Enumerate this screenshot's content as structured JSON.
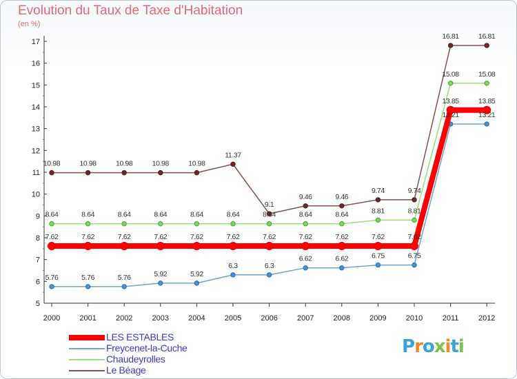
{
  "chart_data": {
    "type": "line",
    "title": "Evolution du Taux de Taxe d'Habitation",
    "subtitle": "(en %)",
    "x": [
      "2000",
      "2001",
      "2002",
      "2003",
      "2004",
      "2005",
      "2006",
      "2007",
      "2008",
      "2009",
      "2010",
      "2011",
      "2012"
    ],
    "ylim": [
      5,
      17
    ],
    "yticks": [
      5,
      6,
      7,
      8,
      9,
      10,
      11,
      12,
      13,
      14,
      15,
      16,
      17
    ],
    "grid": false,
    "legend_position": "bottom-left",
    "series": [
      {
        "name": "LES ESTABLES",
        "color": "#ff0000",
        "values": [
          7.62,
          7.62,
          7.62,
          7.62,
          7.62,
          7.62,
          7.62,
          7.62,
          7.62,
          7.62,
          7.62,
          13.85,
          13.85
        ],
        "labels": [
          "7.62",
          "7.62",
          "7.62",
          "7.62",
          "7.62",
          "7.62",
          "7.62",
          "7.62",
          "7.62",
          "7.62",
          "7.62",
          "13.85",
          "13.85"
        ]
      },
      {
        "name": "Freycenet-la-Cuche",
        "color": "#6fa3d4",
        "values": [
          5.76,
          5.76,
          5.76,
          5.92,
          5.92,
          6.3,
          6.3,
          6.62,
          6.62,
          6.75,
          6.75,
          13.21,
          13.21
        ],
        "labels": [
          "5.76",
          "5.76",
          "5.76",
          "5.92",
          "5.92",
          "6.3",
          "6.3",
          "6.62",
          "6.62",
          "6.75",
          "6.75",
          "13.21",
          "13.21"
        ]
      },
      {
        "name": "Chaudeyrolles",
        "color": "#99e07a",
        "values": [
          8.64,
          8.64,
          8.64,
          8.64,
          8.64,
          8.64,
          8.64,
          8.64,
          8.64,
          8.81,
          8.81,
          15.08,
          15.08
        ],
        "labels": [
          "8.64",
          "8.64",
          "8.64",
          "8.64",
          "8.64",
          "8.64",
          "8.64",
          "8.64",
          "8.64",
          "8.81",
          "8.81",
          "15.08",
          "15.08"
        ]
      },
      {
        "name": "Le Béage",
        "color": "#8b4c4c",
        "values": [
          10.98,
          10.98,
          10.98,
          10.98,
          10.98,
          11.37,
          9.1,
          9.46,
          9.46,
          9.74,
          9.74,
          16.81,
          16.81
        ],
        "labels": [
          "10.98",
          "10.98",
          "10.98",
          "10.98",
          "10.98",
          "11.37",
          "9.1",
          "9.46",
          "9.46",
          "9.74",
          "9.74",
          "16.81",
          "16.81"
        ]
      }
    ]
  },
  "logo": {
    "l1": "P",
    "l2": "r",
    "l3": "o",
    "l4": "x",
    "l5": "i",
    "l6": "t",
    "l7": "i"
  }
}
